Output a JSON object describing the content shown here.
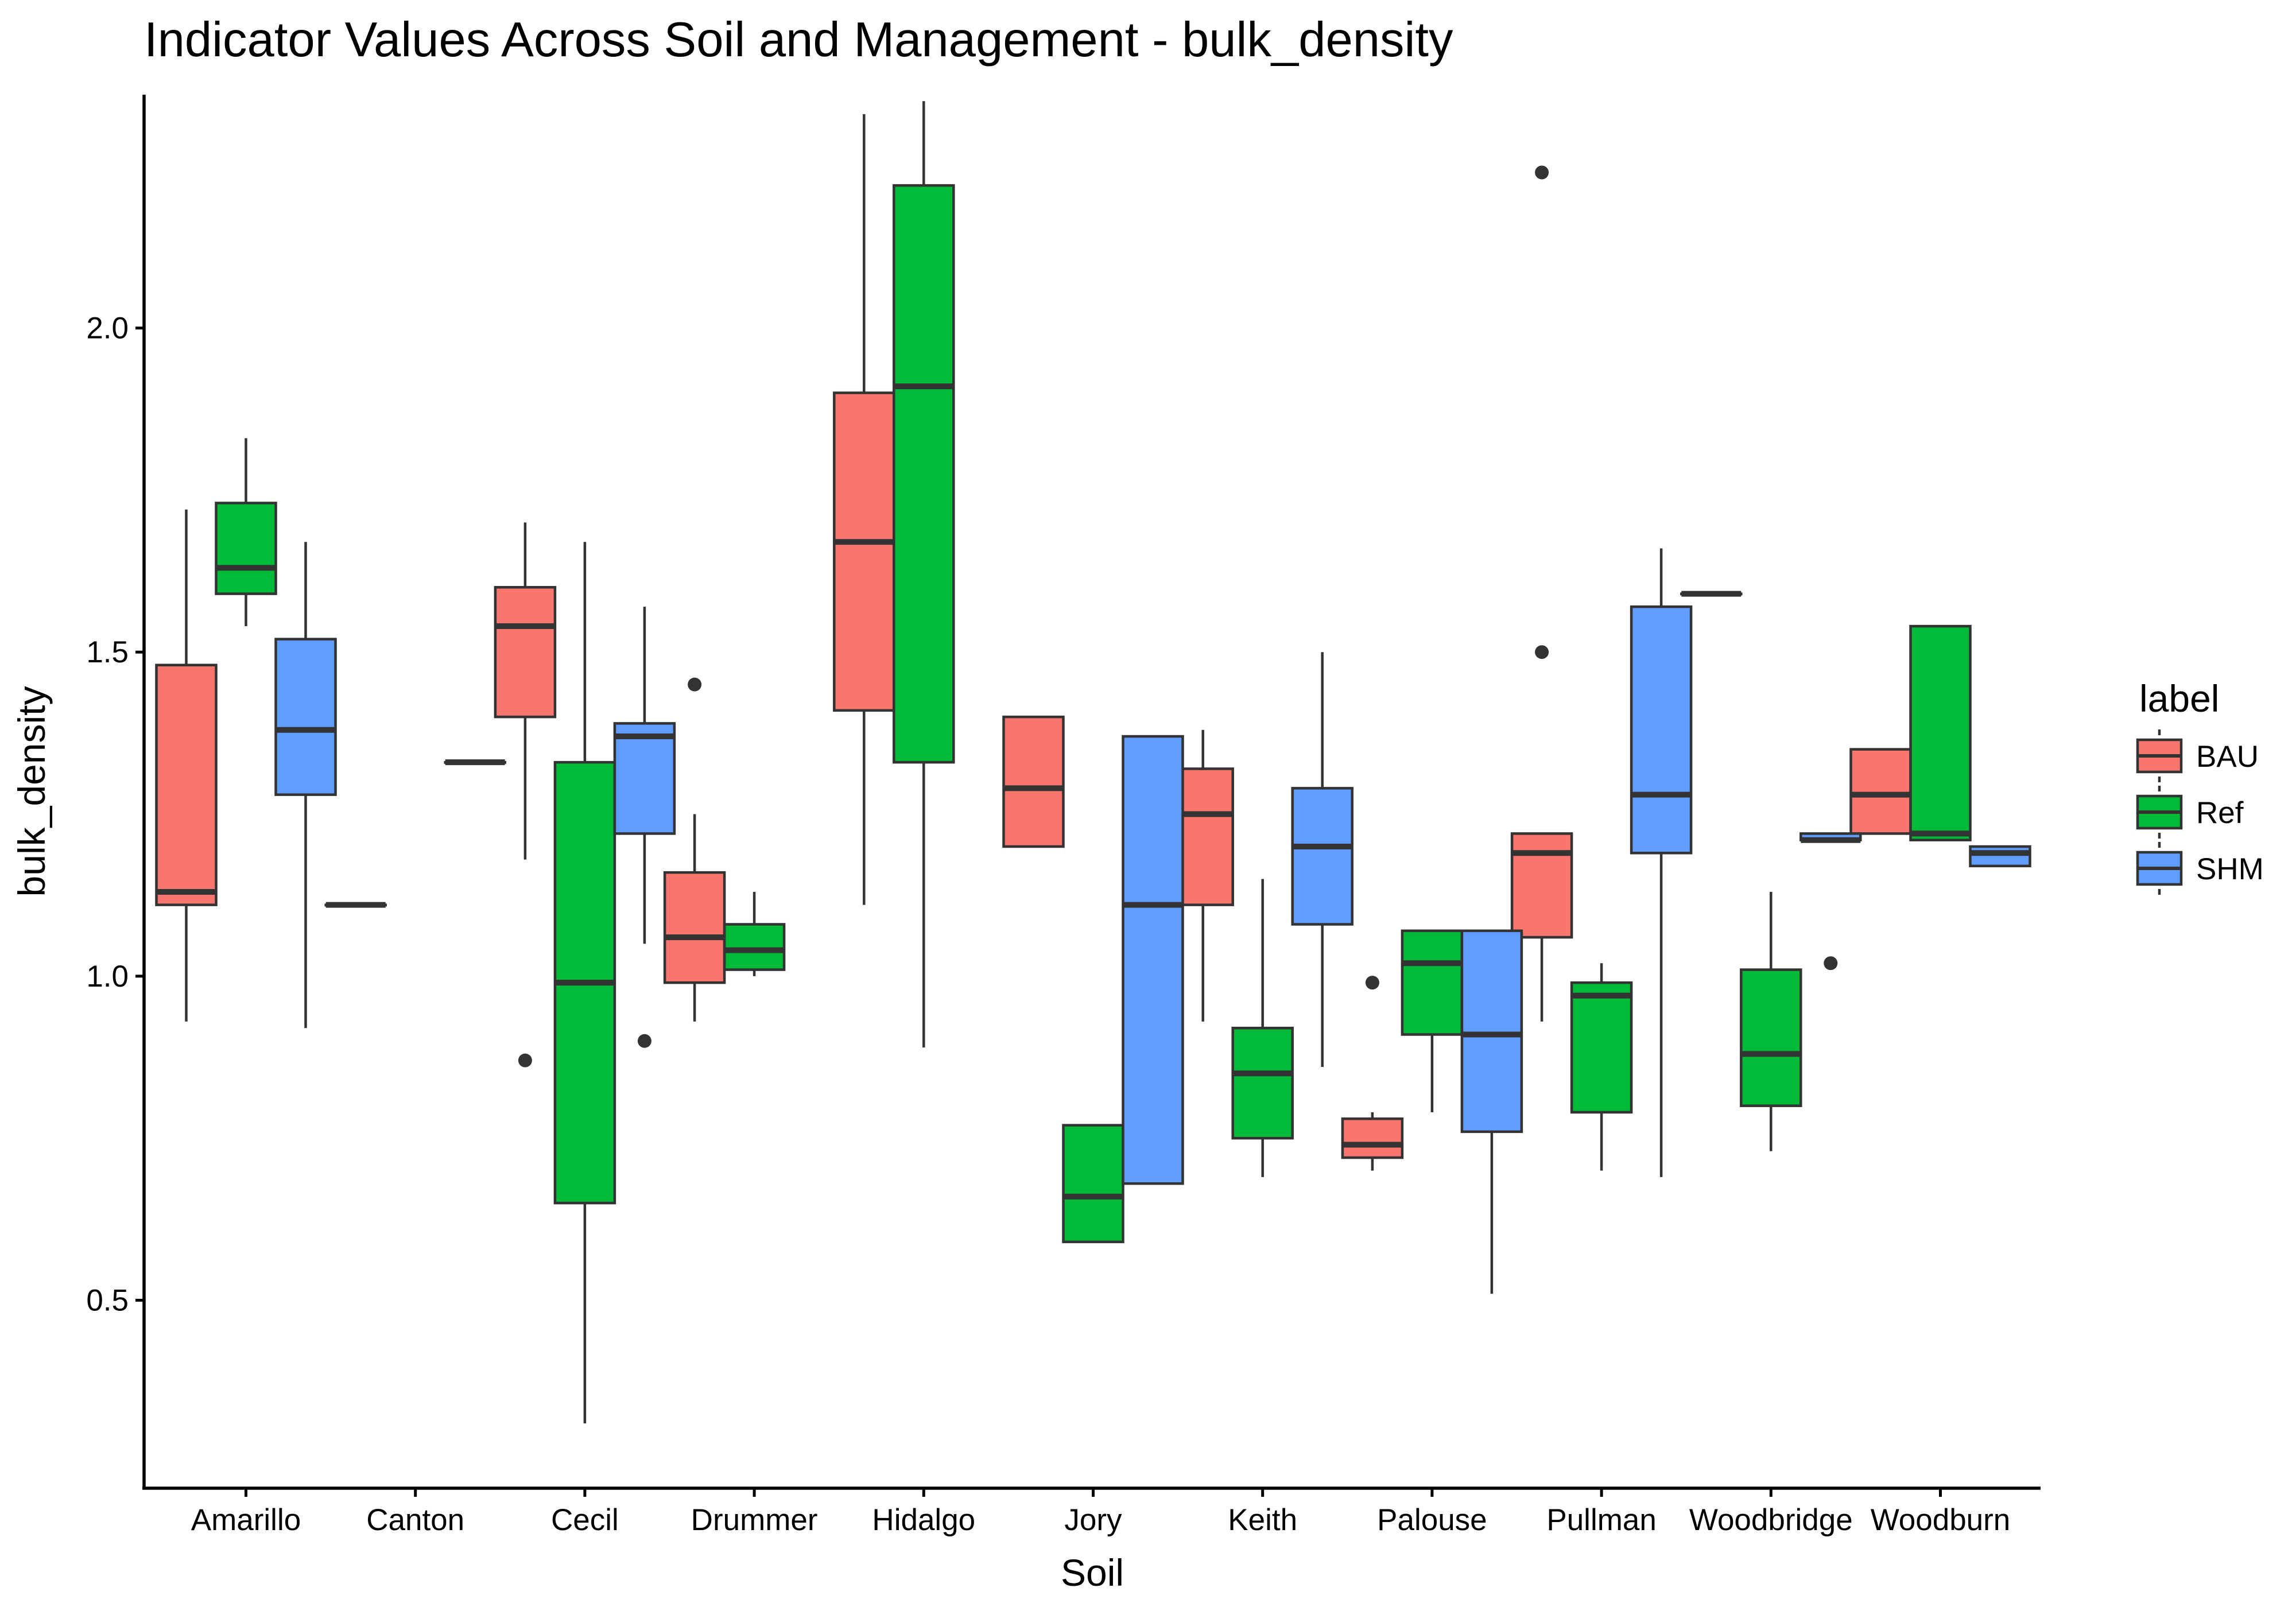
{
  "chart_data": {
    "type": "boxplot",
    "title": "Indicator Values Across Soil and Management - bulk_density",
    "xlabel": "Soil",
    "ylabel": "bulk_density",
    "ylim": [
      0.21,
      2.36
    ],
    "yticks": [
      0.5,
      1.0,
      1.5,
      2.0
    ],
    "ytick_labels": [
      "0.5",
      "1.0",
      "1.5",
      "2.0"
    ],
    "grid": false,
    "legend": {
      "title": "label",
      "position": "right"
    },
    "categories": [
      "Amarillo",
      "Canton",
      "Cecil",
      "Drummer",
      "Hidalgo",
      "Jory",
      "Keith",
      "Palouse",
      "Pullman",
      "Woodbridge",
      "Woodburn"
    ],
    "series": [
      {
        "name": "BAU",
        "color": "#F8766D",
        "boxes": [
          {
            "category": "Amarillo",
            "whisker_low": 0.93,
            "q1": 1.11,
            "median": 1.13,
            "q3": 1.48,
            "whisker_high": 1.72,
            "outliers": []
          },
          {
            "category": "Canton",
            "whisker_low": 1.11,
            "q1": 1.11,
            "median": 1.11,
            "q3": 1.11,
            "whisker_high": 1.11,
            "outliers": []
          },
          {
            "category": "Cecil",
            "whisker_low": 1.18,
            "q1": 1.4,
            "median": 1.54,
            "q3": 1.6,
            "whisker_high": 1.7,
            "outliers": [
              0.87
            ]
          },
          {
            "category": "Drummer",
            "whisker_low": 0.93,
            "q1": 0.99,
            "median": 1.06,
            "q3": 1.16,
            "whisker_high": 1.25,
            "outliers": [
              1.45
            ]
          },
          {
            "category": "Hidalgo",
            "whisker_low": 1.11,
            "q1": 1.41,
            "median": 1.67,
            "q3": 1.9,
            "whisker_high": 2.33,
            "outliers": []
          },
          {
            "category": "Jory",
            "whisker_low": 1.2,
            "q1": 1.2,
            "median": 1.29,
            "q3": 1.4,
            "whisker_high": 1.4,
            "outliers": []
          },
          {
            "category": "Keith",
            "whisker_low": 0.93,
            "q1": 1.11,
            "median": 1.25,
            "q3": 1.32,
            "whisker_high": 1.38,
            "outliers": []
          },
          {
            "category": "Palouse",
            "whisker_low": 0.7,
            "q1": 0.72,
            "median": 0.74,
            "q3": 0.78,
            "whisker_high": 0.79,
            "outliers": [
              0.99
            ]
          },
          {
            "category": "Pullman",
            "whisker_low": 0.93,
            "q1": 1.06,
            "median": 1.19,
            "q3": 1.22,
            "whisker_high": 1.22,
            "outliers": [
              1.5,
              2.24
            ]
          },
          {
            "category": "Woodbridge",
            "whisker_low": 1.59,
            "q1": 1.59,
            "median": 1.59,
            "q3": 1.59,
            "whisker_high": 1.59,
            "outliers": []
          },
          {
            "category": "Woodburn",
            "whisker_low": 1.22,
            "q1": 1.22,
            "median": 1.28,
            "q3": 1.35,
            "whisker_high": 1.35,
            "outliers": []
          }
        ]
      },
      {
        "name": "Ref",
        "color": "#00BA38",
        "boxes": [
          {
            "category": "Amarillo",
            "whisker_low": 1.54,
            "q1": 1.59,
            "median": 1.63,
            "q3": 1.73,
            "whisker_high": 1.83,
            "outliers": []
          },
          {
            "category": "Cecil",
            "whisker_low": 0.31,
            "q1": 0.65,
            "median": 0.99,
            "q3": 1.33,
            "whisker_high": 1.67,
            "outliers": []
          },
          {
            "category": "Drummer",
            "whisker_low": 1.0,
            "q1": 1.01,
            "median": 1.04,
            "q3": 1.08,
            "whisker_high": 1.13,
            "outliers": []
          },
          {
            "category": "Hidalgo",
            "whisker_low": 0.89,
            "q1": 1.33,
            "median": 1.91,
            "q3": 2.22,
            "whisker_high": 2.35,
            "outliers": []
          },
          {
            "category": "Jory",
            "whisker_low": 0.59,
            "q1": 0.59,
            "median": 0.66,
            "q3": 0.77,
            "whisker_high": 0.77,
            "outliers": []
          },
          {
            "category": "Keith",
            "whisker_low": 0.69,
            "q1": 0.75,
            "median": 0.85,
            "q3": 0.92,
            "whisker_high": 1.15,
            "outliers": []
          },
          {
            "category": "Palouse",
            "whisker_low": 0.79,
            "q1": 0.91,
            "median": 1.02,
            "q3": 1.07,
            "whisker_high": 1.07,
            "outliers": []
          },
          {
            "category": "Pullman",
            "whisker_low": 0.7,
            "q1": 0.79,
            "median": 0.97,
            "q3": 0.99,
            "whisker_high": 1.02,
            "outliers": []
          },
          {
            "category": "Woodbridge",
            "whisker_low": 0.73,
            "q1": 0.8,
            "median": 0.88,
            "q3": 1.01,
            "whisker_high": 1.13,
            "outliers": []
          },
          {
            "category": "Woodburn",
            "whisker_low": 1.21,
            "q1": 1.21,
            "median": 1.22,
            "q3": 1.54,
            "whisker_high": 1.54,
            "outliers": []
          }
        ]
      },
      {
        "name": "SHM",
        "color": "#619CFF",
        "boxes": [
          {
            "category": "Amarillo",
            "whisker_low": 0.92,
            "q1": 1.28,
            "median": 1.38,
            "q3": 1.52,
            "whisker_high": 1.67,
            "outliers": []
          },
          {
            "category": "Canton",
            "whisker_low": 1.33,
            "q1": 1.33,
            "median": 1.33,
            "q3": 1.33,
            "whisker_high": 1.33,
            "outliers": []
          },
          {
            "category": "Cecil",
            "whisker_low": 1.05,
            "q1": 1.22,
            "median": 1.37,
            "q3": 1.39,
            "whisker_high": 1.57,
            "outliers": [
              0.9
            ]
          },
          {
            "category": "Jory",
            "whisker_low": 0.68,
            "q1": 0.68,
            "median": 1.11,
            "q3": 1.37,
            "whisker_high": 1.37,
            "outliers": []
          },
          {
            "category": "Keith",
            "whisker_low": 0.86,
            "q1": 1.08,
            "median": 1.2,
            "q3": 1.29,
            "whisker_high": 1.5,
            "outliers": []
          },
          {
            "category": "Palouse",
            "whisker_low": 0.51,
            "q1": 0.76,
            "median": 0.91,
            "q3": 1.07,
            "whisker_high": 1.07,
            "outliers": []
          },
          {
            "category": "Pullman",
            "whisker_low": 0.69,
            "q1": 1.19,
            "median": 1.28,
            "q3": 1.57,
            "whisker_high": 1.66,
            "outliers": []
          },
          {
            "category": "Woodbridge",
            "whisker_low": 1.21,
            "q1": 1.21,
            "median": 1.21,
            "q3": 1.22,
            "whisker_high": 1.22,
            "outliers": [
              1.02
            ]
          },
          {
            "category": "Woodburn",
            "whisker_low": 1.17,
            "q1": 1.17,
            "median": 1.19,
            "q3": 1.2,
            "whisker_high": 1.2,
            "outliers": []
          }
        ]
      }
    ]
  }
}
